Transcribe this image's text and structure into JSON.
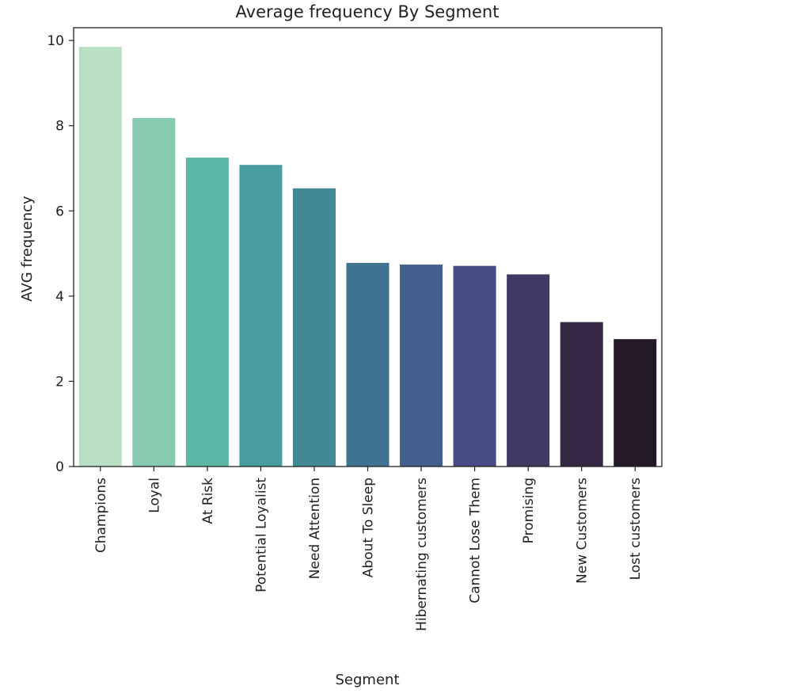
{
  "chart_data": {
    "type": "bar",
    "title": "Average frequency By Segment",
    "xlabel": "Segment",
    "ylabel": "AVG frequency",
    "ylim": [
      0,
      10.3
    ],
    "yticks": [
      0,
      2,
      4,
      6,
      8,
      10
    ],
    "grid": false,
    "legend": "none",
    "categories": [
      "Champions",
      "Loyal",
      "At Risk",
      "Potential Loyalist",
      "Need Attention",
      "About To Sleep",
      "Hibernating customers",
      "Cannot Lose Them",
      "Promising",
      "New Customers",
      "Lost customers"
    ],
    "values": [
      9.85,
      8.18,
      7.25,
      7.08,
      6.53,
      4.78,
      4.74,
      4.71,
      4.51,
      3.39,
      2.99
    ],
    "colors": [
      "#b9dfc5",
      "#86cab0",
      "#5bb7a6",
      "#4a9ea1",
      "#428897",
      "#3f7390",
      "#435f8e",
      "#484c85",
      "#413964",
      "#352844",
      "#231929"
    ]
  }
}
